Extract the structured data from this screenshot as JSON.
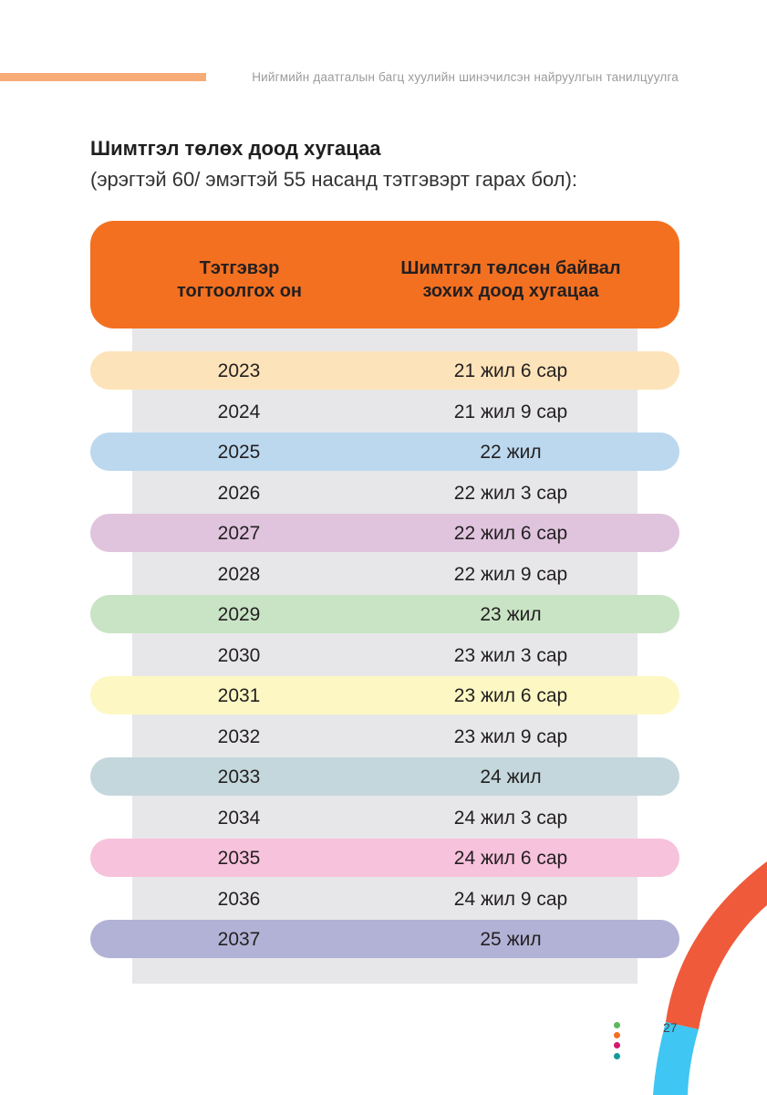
{
  "header": {
    "running_title": "Нийгмийн даатгалын багц хуулийн шинэчилсэн найруулгын танилцуулга"
  },
  "section": {
    "title": "Шимтгэл төлөх доод хугацаа",
    "subtitle": "(эрэгтэй 60/ эмэгтэй 55 насанд тэтгэвэрт гарах бол):"
  },
  "table": {
    "columns": [
      {
        "line1": "Тэтгэвэр",
        "line2": "тогтоолгох он"
      },
      {
        "line1": "Шимтгэл төлсөн байвал",
        "line2": "зохих доод хугацаа"
      }
    ],
    "rows": [
      {
        "year": "2023",
        "duration": "21 жил 6 сар",
        "color": "#fde3b9"
      },
      {
        "year": "2024",
        "duration": "21 жил 9 сар",
        "color": ""
      },
      {
        "year": "2025",
        "duration": "22 жил",
        "color": "#bcd8ef"
      },
      {
        "year": "2026",
        "duration": "22 жил 3 сар",
        "color": ""
      },
      {
        "year": "2027",
        "duration": "22 жил 6 сар",
        "color": "#e0c4de"
      },
      {
        "year": "2028",
        "duration": "22 жил 9 сар",
        "color": ""
      },
      {
        "year": "2029",
        "duration": "23 жил",
        "color": "#c9e4c5"
      },
      {
        "year": "2030",
        "duration": "23 жил 3 сар",
        "color": ""
      },
      {
        "year": "2031",
        "duration": "23 жил 6 сар",
        "color": "#fdf8c3"
      },
      {
        "year": "2032",
        "duration": "23 жил 9 сар",
        "color": ""
      },
      {
        "year": "2033",
        "duration": "24 жил",
        "color": "#c4d7dc"
      },
      {
        "year": "2034",
        "duration": "24 жил 3 сар",
        "color": ""
      },
      {
        "year": "2035",
        "duration": "24 жил 6 сар",
        "color": "#f7c2dc"
      },
      {
        "year": "2036",
        "duration": "24 жил 9 сар",
        "color": ""
      },
      {
        "year": "2037",
        "duration": "25 жил",
        "color": "#b2b2d7"
      }
    ]
  },
  "footer": {
    "page_number": "27",
    "dot_colors": [
      "#5cb85c",
      "#f37021",
      "#d6196b",
      "#139a9a"
    ]
  },
  "colors": {
    "accent_orange": "#f37021",
    "header_bar": "#f7ab76",
    "arc_red": "#ef5a3a",
    "arc_blue": "#3fc6f2"
  }
}
